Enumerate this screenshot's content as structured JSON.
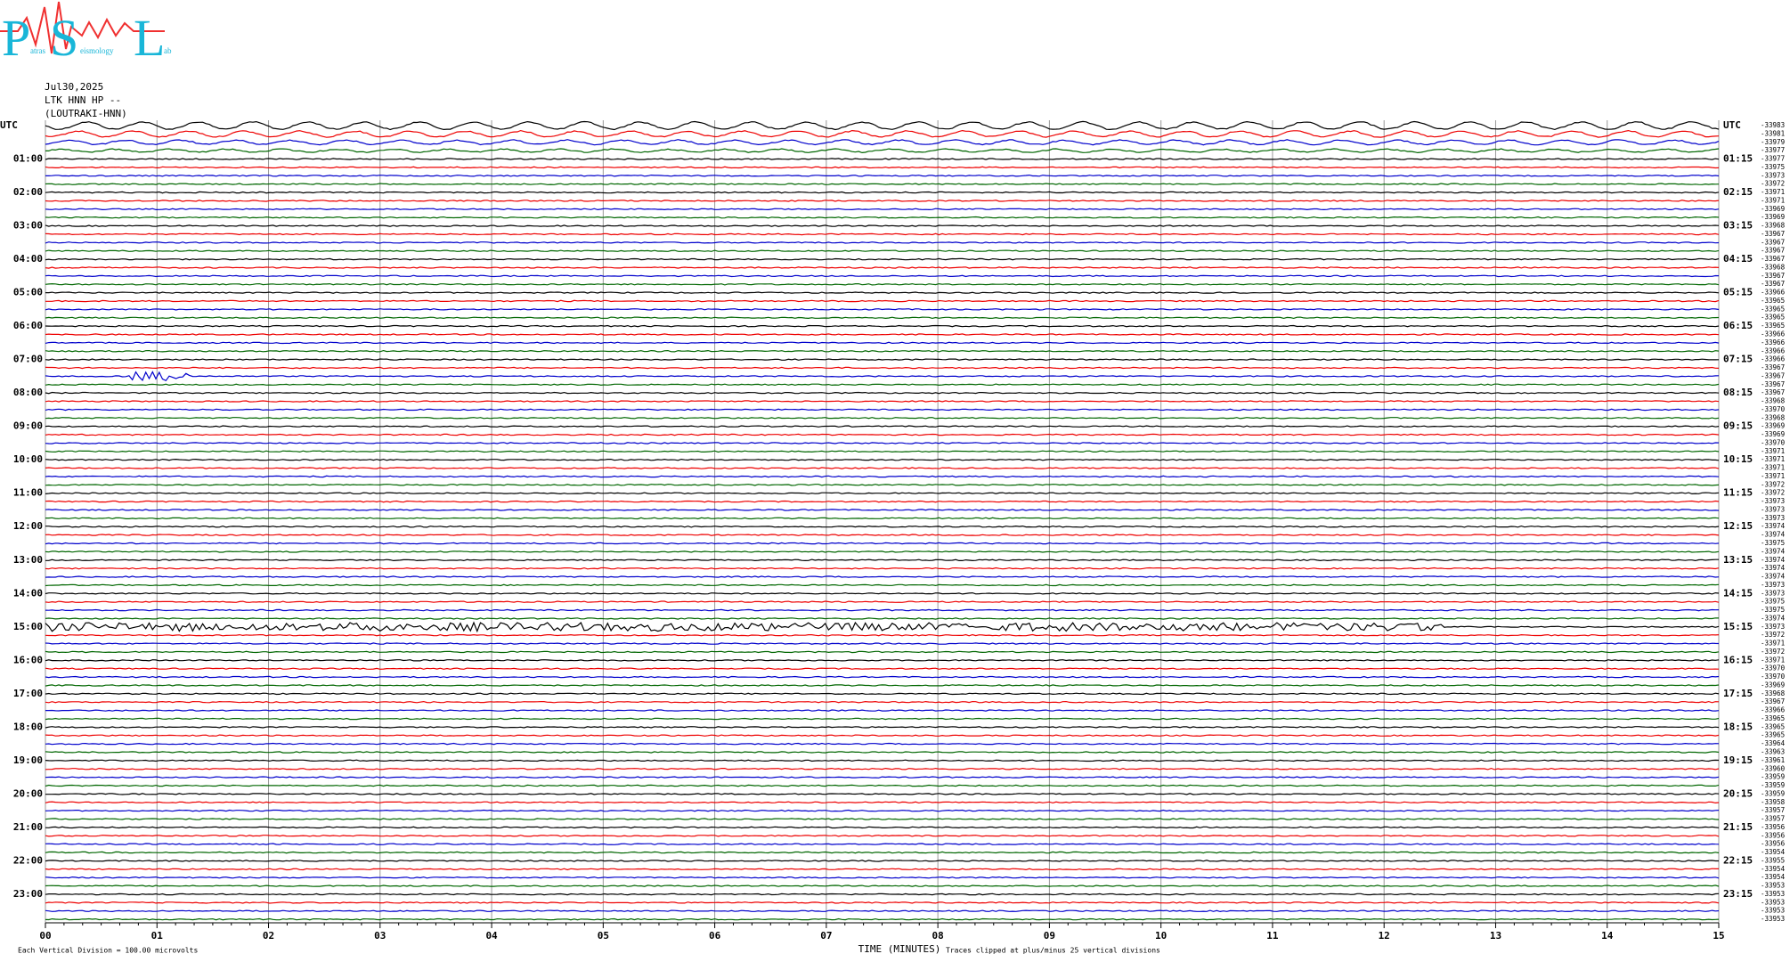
{
  "logo": {
    "letters": [
      "P",
      "S",
      "L"
    ],
    "words": [
      "atras",
      "eismology",
      "ab"
    ]
  },
  "header": {
    "date": "Jul30,2025",
    "station": "LTK HNN HP --",
    "location": "(LOUTRAKI-HNN)"
  },
  "left_labels": [
    "UTC",
    "01:00",
    "02:00",
    "03:00",
    "04:00",
    "05:00",
    "06:00",
    "07:00",
    "08:00",
    "09:00",
    "10:00",
    "11:00",
    "12:00",
    "13:00",
    "14:00",
    "15:00",
    "16:00",
    "17:00",
    "18:00",
    "19:00",
    "20:00",
    "21:00",
    "22:00",
    "23:00"
  ],
  "right_labels": [
    "UTC",
    "01:15",
    "02:15",
    "03:15",
    "04:15",
    "05:15",
    "06:15",
    "07:15",
    "08:15",
    "09:15",
    "10:15",
    "11:15",
    "12:15",
    "13:15",
    "14:15",
    "15:15",
    "16:15",
    "17:15",
    "18:15",
    "19:15",
    "20:15",
    "21:15",
    "22:15",
    "23:15"
  ],
  "offsets": [
    "-33983",
    "-33981",
    "-33979",
    "-33977",
    "-33977",
    "-33975",
    "-33973",
    "-33972",
    "-33971",
    "-33971",
    "-33969",
    "-33969",
    "-33968",
    "-33967",
    "-33967",
    "-33967",
    "-33967",
    "-33968",
    "-33967",
    "-33967",
    "-33966",
    "-33965",
    "-33965",
    "-33965",
    "-33965",
    "-33966",
    "-33966",
    "-33966",
    "-33966",
    "-33967",
    "-33967",
    "-33967",
    "-33967",
    "-33968",
    "-33970",
    "-33968",
    "-33969",
    "-33969",
    "-33970",
    "-33971",
    "-33971",
    "-33971",
    "-33971",
    "-33972",
    "-33972",
    "-33973",
    "-33973",
    "-33973",
    "-33974",
    "-33974",
    "-33975",
    "-33974",
    "-33974",
    "-33974",
    "-33974",
    "-33973",
    "-33973",
    "-33975",
    "-33975",
    "-33974",
    "-33973",
    "-33972",
    "-33971",
    "-33972",
    "-33971",
    "-33970",
    "-33970",
    "-33969",
    "-33968",
    "-33967",
    "-33966",
    "-33965",
    "-33965",
    "-33965",
    "-33964",
    "-33963",
    "-33961",
    "-33960",
    "-33959",
    "-33959",
    "-33959",
    "-33958",
    "-33957",
    "-33957",
    "-33956",
    "-33956",
    "-33956",
    "-33954",
    "-33955",
    "-33954",
    "-33954",
    "-33953",
    "-33953",
    "-33953",
    "-33953",
    "-33953"
  ],
  "x_ticks": [
    "00",
    "01",
    "02",
    "03",
    "04",
    "05",
    "06",
    "07",
    "08",
    "09",
    "10",
    "11",
    "12",
    "13",
    "14",
    "15"
  ],
  "x_title": "TIME (MINUTES)",
  "footer": {
    "scale": "Each Vertical Division =  100.00 microvolts",
    "clip": "Traces clipped at plus/minus 25 vertical divisions"
  }
}
